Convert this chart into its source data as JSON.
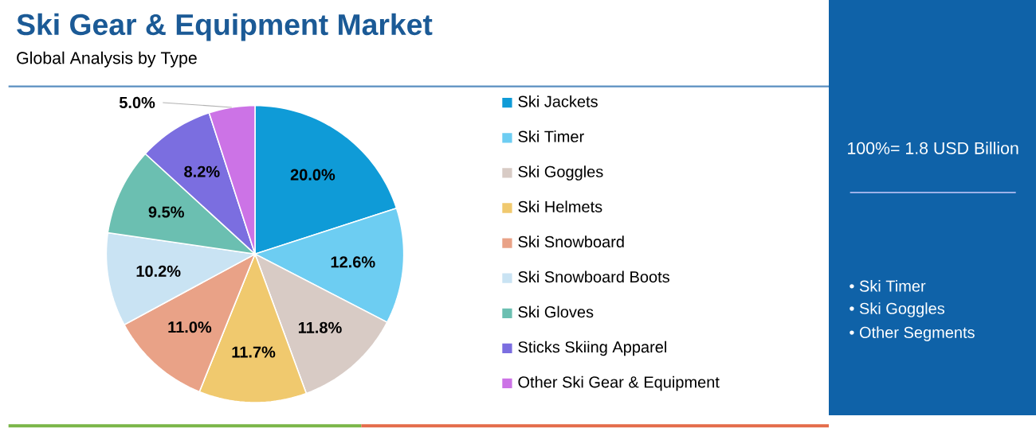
{
  "chart_data": {
    "type": "pie",
    "title": "Ski Gear & Equipment Market",
    "subtitle": "Global Analysis by Type",
    "categories": [
      "Ski Jackets",
      "Ski Timer",
      "Ski Goggles",
      "Ski Helmets",
      "Ski Snowboard",
      "Ski Snowboard Boots",
      "Ski Gloves",
      "Sticks Skiing Apparel",
      "Other Ski Gear & Equipment"
    ],
    "values": [
      20.0,
      12.6,
      11.8,
      11.7,
      11.0,
      10.2,
      9.5,
      8.2,
      5.0
    ],
    "value_labels": [
      "20.0%",
      "12.6%",
      "11.8%",
      "11.7%",
      "11.0%",
      "10.2%",
      "9.5%",
      "8.2%",
      "5.0%"
    ],
    "colors": [
      "#0f9bd7",
      "#6dcdf2",
      "#d8cbc5",
      "#f0c96e",
      "#e9a287",
      "#c9e3f3",
      "#6bbfb1",
      "#7b6ee0",
      "#cc73e6"
    ],
    "legend": "right",
    "annotations": [
      "100%= 1.8 USD Billion",
      "• Ski Timer",
      "• Ski Goggles",
      "• Other Segments"
    ]
  }
}
